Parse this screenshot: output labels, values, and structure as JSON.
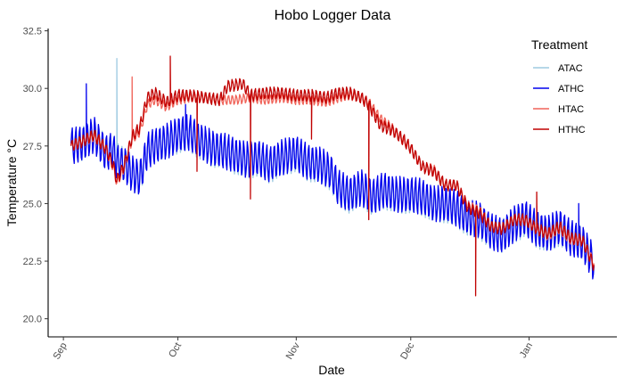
{
  "chart_data": {
    "type": "line",
    "title": "Hobo Logger Data",
    "xlabel": "Date",
    "ylabel": "Temperature °C",
    "x_ticks": [
      {
        "label": "Sep",
        "date": "2020-09-01"
      },
      {
        "label": "Oct",
        "date": "2020-10-01"
      },
      {
        "label": "Nov",
        "date": "2020-11-01"
      },
      {
        "label": "Dec",
        "date": "2020-12-01"
      },
      {
        "label": "Jan",
        "date": "2021-01-01"
      }
    ],
    "xlim": [
      "2020-08-28",
      "2021-01-24"
    ],
    "y_ticks": [
      "20.0",
      "22.5",
      "25.0",
      "27.5",
      "30.0",
      "32.5"
    ],
    "ylim": [
      19.6,
      32.6
    ],
    "grid": false,
    "legend": {
      "title": "Treatment",
      "position": "right"
    },
    "series": [
      {
        "name": "ATAC",
        "color": "#9ecae1",
        "daily_oscillation": 0.7,
        "points": [
          [
            "2020-09-03",
            27.5
          ],
          [
            "2020-09-06",
            27.6
          ],
          [
            "2020-09-09",
            28.0
          ],
          [
            "2020-09-12",
            27.2
          ],
          [
            "2020-09-14",
            27.4
          ],
          [
            "2020-09-15",
            26.9
          ],
          [
            "2020-09-17",
            26.7
          ],
          [
            "2020-09-19",
            26.3
          ],
          [
            "2020-09-21",
            26.1
          ],
          [
            "2020-09-23",
            27.3
          ],
          [
            "2020-09-25",
            27.5
          ],
          [
            "2020-09-28",
            27.7
          ],
          [
            "2020-10-01",
            27.9
          ],
          [
            "2020-10-04",
            28.0
          ],
          [
            "2020-10-07",
            27.6
          ],
          [
            "2020-10-10",
            27.3
          ],
          [
            "2020-10-13",
            27.3
          ],
          [
            "2020-10-16",
            27.0
          ],
          [
            "2020-10-19",
            26.8
          ],
          [
            "2020-10-22",
            26.9
          ],
          [
            "2020-10-25",
            26.6
          ],
          [
            "2020-10-28",
            26.9
          ],
          [
            "2020-11-01",
            27.1
          ],
          [
            "2020-11-04",
            26.7
          ],
          [
            "2020-11-07",
            26.6
          ],
          [
            "2020-11-10",
            26.3
          ],
          [
            "2020-11-12",
            25.6
          ],
          [
            "2020-11-15",
            25.3
          ],
          [
            "2020-11-18",
            25.6
          ],
          [
            "2020-11-21",
            25.2
          ],
          [
            "2020-11-24",
            25.5
          ],
          [
            "2020-11-27",
            25.3
          ],
          [
            "2020-12-01",
            25.3
          ],
          [
            "2020-12-04",
            25.2
          ],
          [
            "2020-12-07",
            24.9
          ],
          [
            "2020-12-10",
            24.9
          ],
          [
            "2020-12-13",
            24.7
          ],
          [
            "2020-12-16",
            24.3
          ],
          [
            "2020-12-19",
            24.2
          ],
          [
            "2020-12-22",
            23.7
          ],
          [
            "2020-12-25",
            23.6
          ],
          [
            "2020-12-28",
            24.0
          ],
          [
            "2020-12-31",
            24.3
          ],
          [
            "2021-01-03",
            23.8
          ],
          [
            "2021-01-06",
            23.6
          ],
          [
            "2021-01-09",
            23.9
          ],
          [
            "2021-01-12",
            23.5
          ],
          [
            "2021-01-15",
            23.3
          ],
          [
            "2021-01-18",
            22.4
          ]
        ],
        "spikes": [
          [
            "2020-09-15",
            31.3
          ],
          [
            "2020-09-12",
            29.5
          ],
          [
            "2020-09-18",
            25.4
          ],
          [
            "2020-10-15",
            29.5
          ],
          [
            "2020-11-21",
            24.3
          ],
          [
            "2020-12-21",
            22.8
          ]
        ]
      },
      {
        "name": "ATHC",
        "color": "#0000ee",
        "daily_oscillation": 0.75,
        "points": [
          [
            "2020-09-03",
            27.5
          ],
          [
            "2020-09-06",
            27.6
          ],
          [
            "2020-09-09",
            28.0
          ],
          [
            "2020-09-12",
            27.2
          ],
          [
            "2020-09-14",
            27.3
          ],
          [
            "2020-09-15",
            26.8
          ],
          [
            "2020-09-17",
            26.7
          ],
          [
            "2020-09-19",
            26.3
          ],
          [
            "2020-09-21",
            26.1
          ],
          [
            "2020-09-23",
            27.3
          ],
          [
            "2020-09-25",
            27.5
          ],
          [
            "2020-09-28",
            27.7
          ],
          [
            "2020-10-01",
            28.0
          ],
          [
            "2020-10-04",
            28.1
          ],
          [
            "2020-10-07",
            27.7
          ],
          [
            "2020-10-10",
            27.4
          ],
          [
            "2020-10-13",
            27.3
          ],
          [
            "2020-10-16",
            27.1
          ],
          [
            "2020-10-19",
            26.9
          ],
          [
            "2020-10-22",
            27.0
          ],
          [
            "2020-10-25",
            26.7
          ],
          [
            "2020-10-28",
            27.0
          ],
          [
            "2020-11-01",
            27.2
          ],
          [
            "2020-11-04",
            26.8
          ],
          [
            "2020-11-07",
            26.7
          ],
          [
            "2020-11-10",
            26.4
          ],
          [
            "2020-11-12",
            25.7
          ],
          [
            "2020-11-15",
            25.4
          ],
          [
            "2020-11-18",
            25.7
          ],
          [
            "2020-11-21",
            25.3
          ],
          [
            "2020-11-24",
            25.6
          ],
          [
            "2020-11-27",
            25.4
          ],
          [
            "2020-12-01",
            25.4
          ],
          [
            "2020-12-04",
            25.3
          ],
          [
            "2020-12-07",
            25.0
          ],
          [
            "2020-12-10",
            25.0
          ],
          [
            "2020-12-13",
            24.8
          ],
          [
            "2020-12-16",
            24.4
          ],
          [
            "2020-12-19",
            24.3
          ],
          [
            "2020-12-22",
            23.8
          ],
          [
            "2020-12-25",
            23.6
          ],
          [
            "2020-12-28",
            24.1
          ],
          [
            "2020-12-31",
            24.4
          ],
          [
            "2021-01-03",
            23.9
          ],
          [
            "2021-01-06",
            23.7
          ],
          [
            "2021-01-09",
            24.0
          ],
          [
            "2021-01-12",
            23.5
          ],
          [
            "2021-01-15",
            23.3
          ],
          [
            "2021-01-18",
            22.4
          ]
        ],
        "spikes": [
          [
            "2020-09-07",
            30.2
          ],
          [
            "2020-10-03",
            29.3
          ],
          [
            "2021-01-14",
            25.0
          ]
        ]
      },
      {
        "name": "HTAC",
        "color": "#f0645a",
        "daily_oscillation": 0.2,
        "points": [
          [
            "2020-09-03",
            27.5
          ],
          [
            "2020-09-06",
            27.7
          ],
          [
            "2020-09-09",
            27.9
          ],
          [
            "2020-09-12",
            27.4
          ],
          [
            "2020-09-14",
            26.6
          ],
          [
            "2020-09-15",
            25.9
          ],
          [
            "2020-09-17",
            26.6
          ],
          [
            "2020-09-19",
            27.8
          ],
          [
            "2020-09-21",
            28.1
          ],
          [
            "2020-09-23",
            29.3
          ],
          [
            "2020-09-25",
            29.5
          ],
          [
            "2020-09-28",
            29.2
          ],
          [
            "2020-10-01",
            29.5
          ],
          [
            "2020-10-04",
            29.6
          ],
          [
            "2020-10-08",
            29.6
          ],
          [
            "2020-10-12",
            29.5
          ],
          [
            "2020-10-16",
            29.5
          ],
          [
            "2020-10-20",
            29.6
          ],
          [
            "2020-10-24",
            29.5
          ],
          [
            "2020-10-28",
            29.6
          ],
          [
            "2020-11-01",
            29.5
          ],
          [
            "2020-11-05",
            29.5
          ],
          [
            "2020-11-09",
            29.4
          ],
          [
            "2020-11-12",
            29.6
          ],
          [
            "2020-11-15",
            29.7
          ],
          [
            "2020-11-18",
            29.6
          ],
          [
            "2020-11-20",
            29.4
          ],
          [
            "2020-11-23",
            28.7
          ],
          [
            "2020-11-26",
            28.3
          ],
          [
            "2020-11-29",
            27.7
          ],
          [
            "2020-12-01",
            27.4
          ],
          [
            "2020-12-04",
            26.6
          ],
          [
            "2020-12-07",
            26.5
          ],
          [
            "2020-12-10",
            25.8
          ],
          [
            "2020-12-13",
            25.8
          ],
          [
            "2020-12-16",
            24.9
          ],
          [
            "2020-12-19",
            24.7
          ],
          [
            "2020-12-22",
            24.0
          ],
          [
            "2020-12-25",
            23.9
          ],
          [
            "2020-12-28",
            24.3
          ],
          [
            "2020-12-31",
            24.3
          ],
          [
            "2021-01-03",
            23.9
          ],
          [
            "2021-01-06",
            23.6
          ],
          [
            "2021-01-09",
            23.9
          ],
          [
            "2021-01-12",
            23.4
          ],
          [
            "2021-01-15",
            23.4
          ],
          [
            "2021-01-18",
            22.4
          ]
        ],
        "spikes": [
          [
            "2020-09-19",
            30.5
          ],
          [
            "2020-09-16",
            25.4
          ],
          [
            "2020-10-24",
            27.6
          ],
          [
            "2020-11-11",
            28.6
          ],
          [
            "2021-01-08",
            22.1
          ],
          [
            "2021-01-12",
            25.0
          ]
        ]
      },
      {
        "name": "HTHC",
        "color": "#c00000",
        "daily_oscillation": 0.25,
        "points": [
          [
            "2020-09-03",
            27.5
          ],
          [
            "2020-09-06",
            27.7
          ],
          [
            "2020-09-09",
            28.0
          ],
          [
            "2020-09-12",
            27.4
          ],
          [
            "2020-09-14",
            26.7
          ],
          [
            "2020-09-15",
            26.0
          ],
          [
            "2020-09-17",
            26.7
          ],
          [
            "2020-09-19",
            27.9
          ],
          [
            "2020-09-21",
            28.3
          ],
          [
            "2020-09-23",
            29.6
          ],
          [
            "2020-09-25",
            29.8
          ],
          [
            "2020-09-28",
            29.4
          ],
          [
            "2020-10-01",
            29.7
          ],
          [
            "2020-10-04",
            29.7
          ],
          [
            "2020-10-08",
            29.6
          ],
          [
            "2020-10-12",
            29.5
          ],
          [
            "2020-10-14",
            30.1
          ],
          [
            "2020-10-18",
            30.2
          ],
          [
            "2020-10-20",
            29.7
          ],
          [
            "2020-10-24",
            29.8
          ],
          [
            "2020-10-28",
            29.8
          ],
          [
            "2020-11-01",
            29.7
          ],
          [
            "2020-11-05",
            29.7
          ],
          [
            "2020-11-09",
            29.6
          ],
          [
            "2020-11-12",
            29.8
          ],
          [
            "2020-11-15",
            29.8
          ],
          [
            "2020-11-18",
            29.6
          ],
          [
            "2020-11-20",
            29.3
          ],
          [
            "2020-11-23",
            28.4
          ],
          [
            "2020-11-26",
            28.2
          ],
          [
            "2020-11-29",
            27.8
          ],
          [
            "2020-12-01",
            27.4
          ],
          [
            "2020-12-04",
            26.6
          ],
          [
            "2020-12-07",
            26.4
          ],
          [
            "2020-12-10",
            25.8
          ],
          [
            "2020-12-13",
            25.8
          ],
          [
            "2020-12-16",
            24.8
          ],
          [
            "2020-12-19",
            24.6
          ],
          [
            "2020-12-22",
            24.0
          ],
          [
            "2020-12-25",
            23.9
          ],
          [
            "2020-12-28",
            24.3
          ],
          [
            "2020-12-31",
            24.3
          ],
          [
            "2021-01-03",
            23.9
          ],
          [
            "2021-01-06",
            23.7
          ],
          [
            "2021-01-09",
            24.0
          ],
          [
            "2021-01-12",
            23.5
          ],
          [
            "2021-01-15",
            23.4
          ],
          [
            "2021-01-18",
            22.3
          ]
        ],
        "spikes": [
          [
            "2020-09-29",
            31.4
          ],
          [
            "2020-10-06",
            26.4
          ],
          [
            "2020-10-20",
            25.2
          ],
          [
            "2020-11-05",
            27.8
          ],
          [
            "2020-11-20",
            24.3
          ],
          [
            "2020-12-18",
            21.0
          ],
          [
            "2021-01-03",
            25.5
          ]
        ]
      }
    ]
  }
}
